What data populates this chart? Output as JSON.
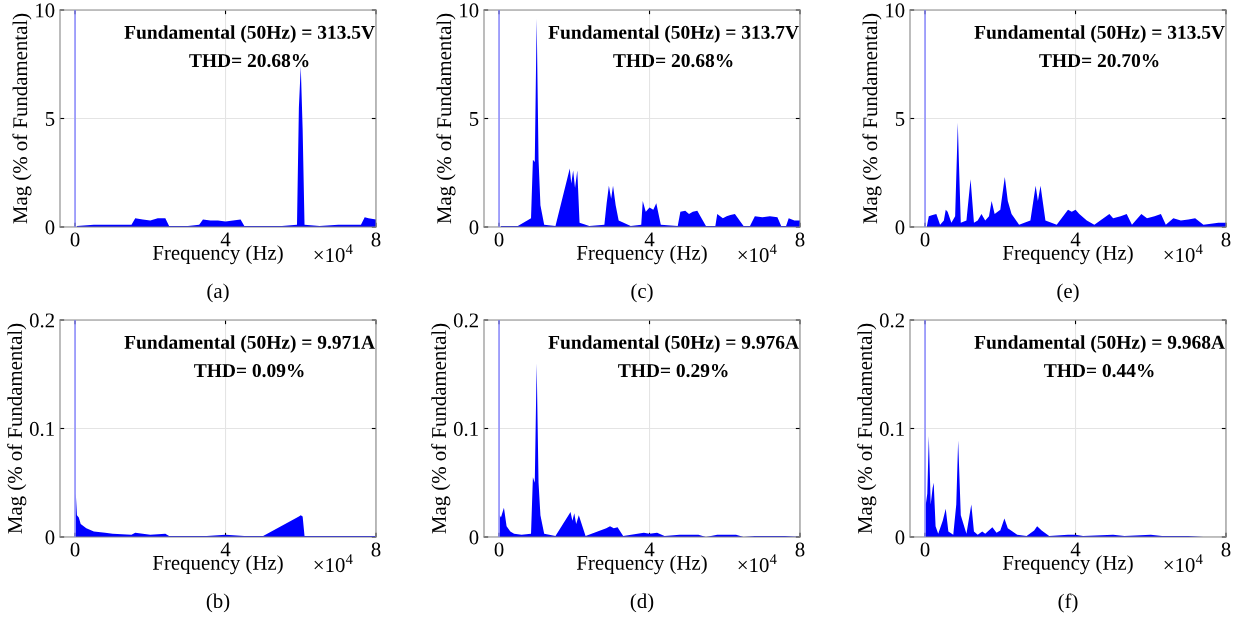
{
  "chart_data": [
    {
      "type": "area",
      "xlabel": "Frequency (Hz)",
      "ylabel": "Mag (% of Fundamental)",
      "annotations": [
        "Fundamental (50Hz) = 313.5V",
        "THD= 20.68%",
        "×10$^{4}$",
        "(a)"
      ],
      "xlim": [
        -0.4,
        8
      ],
      "xticks": [
        0,
        4,
        8
      ],
      "ylim": [
        0,
        10
      ],
      "yticks": [
        0,
        5,
        10
      ],
      "grid": true,
      "ref_lines": [
        {
          "axis": "x",
          "value": 0,
          "color": "#8080ff"
        }
      ],
      "series": [
        {
          "color": "#0000ff",
          "x": [
            0.05,
            0.5,
            1.0,
            1.5,
            1.6,
            1.8,
            2.0,
            2.2,
            2.4,
            2.5,
            3.0,
            3.3,
            3.4,
            3.6,
            3.8,
            4.0,
            4.2,
            4.4,
            4.5,
            5.0,
            5.5,
            5.9,
            5.95,
            6.0,
            6.05,
            6.1,
            6.5,
            7.0,
            7.6,
            7.7,
            7.8,
            8.0
          ],
          "values": [
            0.05,
            0.1,
            0.1,
            0.1,
            0.4,
            0.35,
            0.3,
            0.4,
            0.4,
            0.05,
            0.05,
            0.1,
            0.35,
            0.3,
            0.3,
            0.25,
            0.3,
            0.35,
            0.05,
            0.05,
            0.05,
            0.1,
            5.5,
            7.4,
            4.5,
            0.1,
            0.05,
            0.1,
            0.1,
            0.45,
            0.4,
            0.35
          ]
        }
      ]
    },
    {
      "type": "area",
      "xlabel": "Frequency (Hz)",
      "ylabel": "Mag (% of Fundamental)",
      "annotations": [
        "Fundamental (50Hz) = 313.7V",
        "THD= 20.68%",
        "×10$^{4}$",
        "(c)"
      ],
      "xlim": [
        -0.4,
        8
      ],
      "xticks": [
        0,
        4,
        8
      ],
      "ylim": [
        0,
        10
      ],
      "yticks": [
        0,
        5,
        10
      ],
      "grid": true,
      "ref_lines": [
        {
          "axis": "x",
          "value": 0,
          "color": "#8080ff"
        }
      ],
      "series": [
        {
          "color": "#0000ff",
          "x": [
            0.05,
            0.5,
            0.85,
            0.9,
            0.95,
            1.0,
            1.05,
            1.1,
            1.2,
            1.5,
            1.88,
            1.92,
            1.97,
            2.02,
            2.08,
            2.14,
            2.4,
            2.8,
            2.86,
            2.92,
            2.98,
            3.03,
            3.1,
            3.18,
            3.5,
            3.78,
            3.82,
            3.9,
            4.0,
            4.1,
            4.18,
            4.3,
            4.75,
            4.82,
            4.95,
            5.05,
            5.15,
            5.27,
            5.5,
            5.75,
            5.8,
            5.95,
            6.05,
            6.15,
            6.27,
            6.5,
            6.67,
            6.8,
            7.0,
            7.2,
            7.4,
            7.5,
            7.63,
            7.7,
            7.85,
            8.0
          ],
          "values": [
            0.05,
            0.05,
            0.4,
            3.1,
            3.0,
            9.6,
            3.1,
            1.0,
            0.1,
            0.05,
            2.7,
            2.0,
            2.6,
            1.8,
            2.6,
            0.2,
            0.05,
            0.1,
            1.1,
            1.9,
            1.3,
            1.9,
            1.0,
            0.3,
            0.05,
            0.1,
            1.2,
            0.7,
            0.9,
            0.8,
            1.1,
            0.1,
            0.05,
            0.7,
            0.75,
            0.6,
            0.7,
            0.75,
            0.05,
            0.05,
            0.6,
            0.4,
            0.5,
            0.55,
            0.6,
            0.05,
            0.05,
            0.5,
            0.45,
            0.5,
            0.45,
            0.05,
            0.05,
            0.4,
            0.3,
            0.3
          ]
        }
      ]
    },
    {
      "type": "area",
      "xlabel": "Frequency (Hz)",
      "ylabel": "Mag (% of Fundamental)",
      "annotations": [
        "Fundamental (50Hz) = 313.5V",
        "THD= 20.70%",
        "×10$^{4}$",
        "(e)"
      ],
      "xlim": [
        -0.4,
        8
      ],
      "xticks": [
        0,
        4,
        8
      ],
      "ylim": [
        0,
        10
      ],
      "yticks": [
        0,
        5,
        10
      ],
      "grid": true,
      "ref_lines": [
        {
          "axis": "x",
          "value": 0,
          "color": "#8080ff"
        }
      ],
      "series": [
        {
          "color": "#0000ff",
          "x": [
            0.05,
            0.1,
            0.2,
            0.3,
            0.4,
            0.5,
            0.55,
            0.6,
            0.7,
            0.8,
            0.85,
            0.87,
            0.9,
            0.95,
            1.1,
            1.21,
            1.3,
            1.4,
            1.5,
            1.6,
            1.7,
            1.77,
            1.85,
            2.0,
            2.12,
            2.2,
            2.3,
            2.38,
            2.5,
            2.8,
            2.94,
            3.0,
            3.07,
            3.2,
            3.5,
            3.8,
            3.9,
            4.0,
            4.1,
            4.3,
            4.5,
            4.9,
            5.0,
            5.2,
            5.36,
            5.5,
            5.75,
            5.9,
            6.1,
            6.27,
            6.4,
            6.6,
            6.8,
            7.0,
            7.18,
            7.4,
            7.8,
            7.9,
            8.0
          ],
          "values": [
            0.05,
            0.5,
            0.55,
            0.6,
            0.1,
            0.3,
            0.8,
            0.7,
            0.2,
            0.5,
            3.5,
            4.8,
            3.0,
            0.2,
            0.3,
            2.2,
            0.2,
            0.3,
            0.6,
            0.3,
            0.5,
            1.2,
            0.6,
            0.8,
            2.3,
            1.2,
            0.6,
            0.4,
            0.1,
            0.3,
            1.9,
            1.2,
            1.9,
            0.3,
            0.1,
            0.8,
            0.7,
            0.8,
            0.6,
            0.3,
            0.1,
            0.6,
            0.4,
            0.5,
            0.6,
            0.1,
            0.6,
            0.4,
            0.5,
            0.6,
            0.1,
            0.4,
            0.3,
            0.35,
            0.4,
            0.1,
            0.2,
            0.2,
            0.2
          ]
        }
      ]
    },
    {
      "type": "area",
      "xlabel": "Frequency (Hz)",
      "ylabel": "Mag (% of Fundamental)",
      "annotations": [
        "Fundamental (50Hz) = 9.971A",
        "THD= 0.09%",
        "×10$^{4}$",
        "(b)"
      ],
      "xlim": [
        -0.4,
        8
      ],
      "xticks": [
        0,
        4,
        8
      ],
      "ylim": [
        0,
        0.2
      ],
      "yticks": [
        0,
        0.1,
        0.2
      ],
      "grid": true,
      "ref_lines": [
        {
          "axis": "x",
          "value": 0,
          "color": "#8080ff"
        }
      ],
      "series": [
        {
          "color": "#0000ff",
          "x": [
            0.02,
            0.05,
            0.1,
            0.15,
            0.3,
            0.5,
            0.8,
            1.0,
            1.5,
            1.6,
            1.8,
            2.0,
            2.4,
            2.5,
            3.0,
            3.5,
            4.0,
            4.5,
            5.0,
            5.95,
            6.0,
            6.05,
            6.1,
            7.0,
            7.8,
            8.0
          ],
          "values": [
            0.04,
            0.02,
            0.018,
            0.012,
            0.008,
            0.005,
            0.004,
            0.003,
            0.002,
            0.004,
            0.003,
            0.002,
            0.003,
            0.001,
            0.001,
            0.001,
            0.002,
            0.001,
            0.001,
            0.019,
            0.02,
            0.019,
            0.001,
            0.001,
            0.001,
            0.001
          ]
        }
      ]
    },
    {
      "type": "area",
      "xlabel": "Frequency (Hz)",
      "ylabel": "Mag (% of Fundamental)",
      "annotations": [
        "Fundamental (50Hz) = 9.976A",
        "THD= 0.29%",
        "×10$^{4}$",
        "(d)"
      ],
      "xlim": [
        -0.4,
        8
      ],
      "xticks": [
        0,
        4,
        8
      ],
      "ylim": [
        0,
        0.2
      ],
      "yticks": [
        0,
        0.1,
        0.2
      ],
      "grid": true,
      "ref_lines": [
        {
          "axis": "x",
          "value": 0,
          "color": "#8080ff"
        }
      ],
      "series": [
        {
          "color": "#0000ff",
          "x": [
            0.02,
            0.05,
            0.13,
            0.2,
            0.3,
            0.4,
            0.6,
            0.85,
            0.9,
            0.95,
            1.0,
            1.05,
            1.1,
            1.2,
            1.5,
            1.9,
            1.95,
            2.0,
            2.05,
            2.12,
            2.3,
            2.85,
            2.95,
            3.05,
            3.15,
            3.3,
            3.85,
            4.0,
            4.2,
            4.4,
            4.8,
            5.0,
            5.3,
            5.5,
            5.8,
            6.0,
            6.3,
            6.5,
            6.8,
            7.2,
            7.6,
            8.0
          ],
          "values": [
            0.02,
            0.018,
            0.027,
            0.01,
            0.005,
            0.003,
            0.002,
            0.003,
            0.055,
            0.05,
            0.16,
            0.05,
            0.02,
            0.003,
            0.001,
            0.023,
            0.015,
            0.022,
            0.012,
            0.02,
            0.001,
            0.008,
            0.01,
            0.008,
            0.009,
            0.001,
            0.004,
            0.003,
            0.004,
            0.001,
            0.002,
            0.002,
            0.002,
            0,
            0.002,
            0.002,
            0.002,
            0,
            0.001,
            0.001,
            0.001,
            0
          ]
        }
      ]
    },
    {
      "type": "area",
      "xlabel": "Frequency (Hz)",
      "ylabel": "Mag (% of Fundamental)",
      "annotations": [
        "Fundamental (50Hz) = 9.968A",
        "THD= 0.44%",
        "×10$^{4}$",
        "(f)"
      ],
      "xlim": [
        -0.4,
        8
      ],
      "xticks": [
        0,
        4,
        8
      ],
      "ylim": [
        0,
        0.2
      ],
      "yticks": [
        0,
        0.1,
        0.2
      ],
      "grid": true,
      "ref_lines": [
        {
          "axis": "x",
          "value": 0,
          "color": "#8080ff"
        }
      ],
      "series": [
        {
          "color": "#0000ff",
          "x": [
            0.02,
            0.06,
            0.1,
            0.15,
            0.2,
            0.23,
            0.28,
            0.35,
            0.47,
            0.55,
            0.62,
            0.75,
            0.83,
            0.88,
            0.95,
            1.1,
            1.23,
            1.3,
            1.4,
            1.52,
            1.6,
            1.79,
            1.9,
            2.0,
            2.11,
            2.2,
            2.45,
            2.7,
            2.9,
            2.98,
            3.1,
            3.3,
            3.8,
            4.0,
            4.2,
            5.0,
            5.3,
            6.0,
            6.3,
            7.0,
            7.4,
            8.0
          ],
          "values": [
            0.03,
            0.04,
            0.093,
            0.03,
            0.045,
            0.05,
            0.01,
            0.003,
            0.015,
            0.026,
            0.005,
            0.002,
            0.03,
            0.089,
            0.02,
            0.003,
            0.03,
            0.005,
            0.002,
            0.005,
            0.003,
            0.009,
            0.004,
            0.006,
            0.017,
            0.008,
            0.002,
            0.001,
            0.006,
            0.01,
            0.006,
            0.001,
            0.002,
            0.002,
            0.001,
            0.002,
            0.001,
            0.002,
            0.001,
            0.001,
            0,
            0
          ]
        }
      ]
    }
  ]
}
